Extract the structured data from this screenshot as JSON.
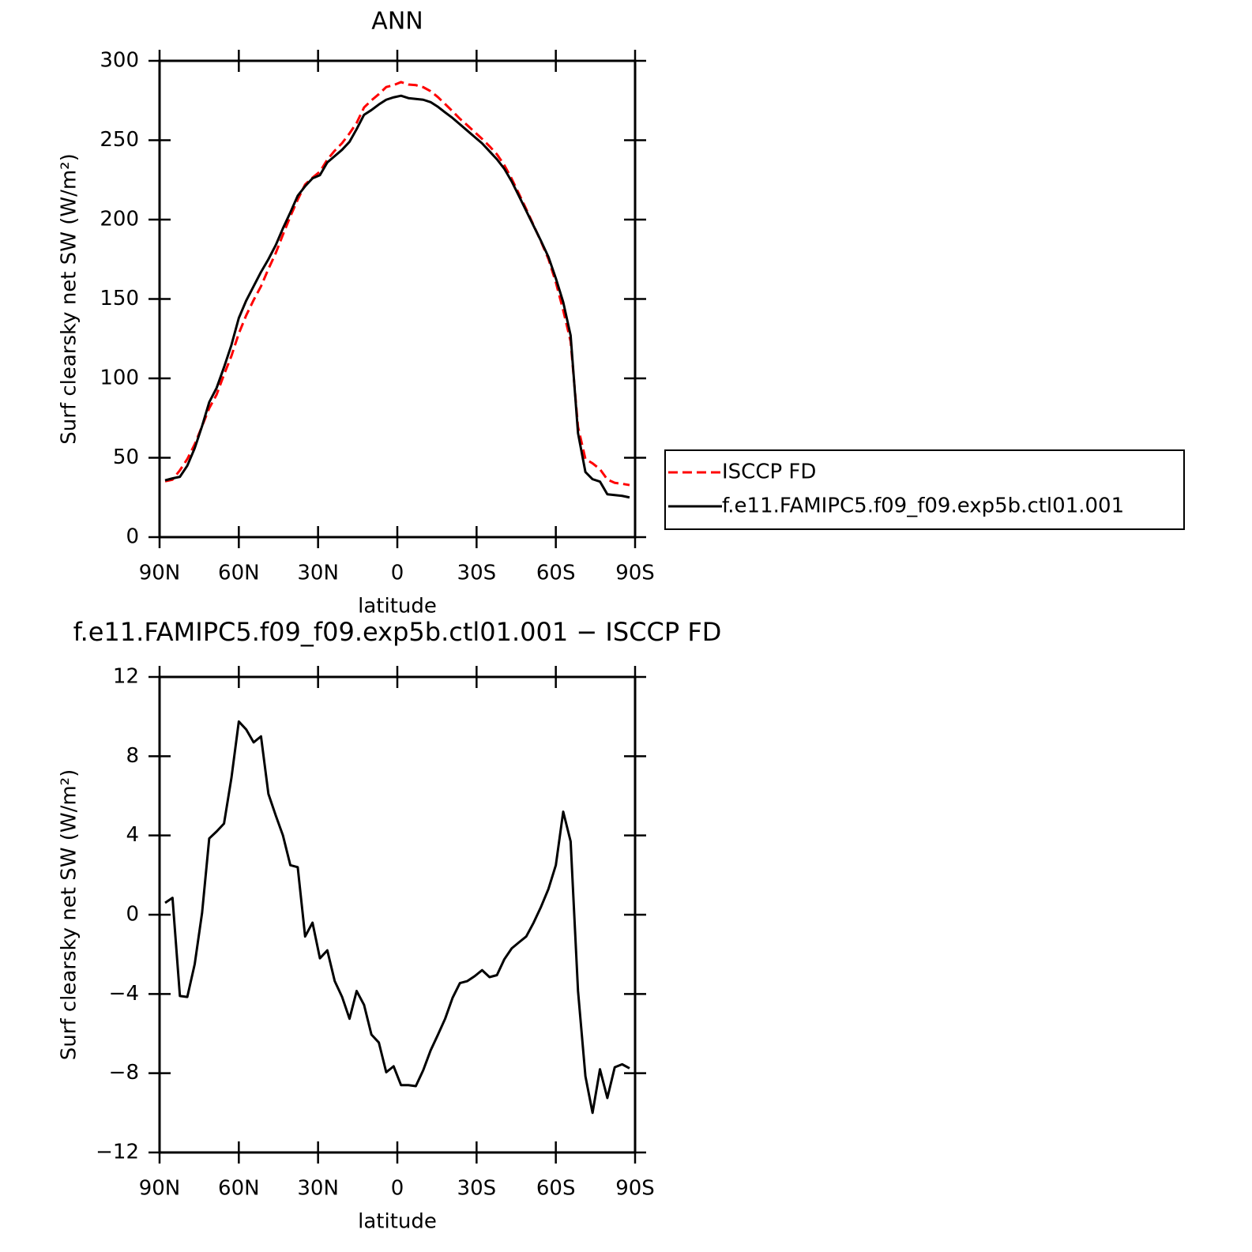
{
  "chart_data": [
    {
      "type": "line",
      "title": "ANN",
      "xlabel": "latitude",
      "ylabel": "Surf clearsky net SW (W/m²)",
      "x": [
        87.9,
        85.1,
        82.3,
        79.5,
        76.7,
        73.9,
        71.2,
        68.4,
        65.6,
        62.8,
        60,
        57.2,
        54.4,
        51.6,
        48.8,
        46,
        43.3,
        40.5,
        37.7,
        34.9,
        32.1,
        29.3,
        26.5,
        23.7,
        20.9,
        18.1,
        15.4,
        12.6,
        9.8,
        7,
        4.2,
        1.4,
        -1.4,
        -4.2,
        -7,
        -9.8,
        -12.6,
        -15.4,
        -18.1,
        -20.9,
        -23.7,
        -26.5,
        -29.3,
        -32.1,
        -34.9,
        -37.7,
        -40.5,
        -43.3,
        -46,
        -48.8,
        -51.6,
        -54.4,
        -57.2,
        -60,
        -62.8,
        -65.6,
        -68.4,
        -71.2,
        -73.9,
        -76.7,
        -79.5,
        -82.3,
        -85.1,
        -87.9
      ],
      "xlim": [
        90,
        -90
      ],
      "xticks": [
        {
          "value": 90,
          "label": "90N"
        },
        {
          "value": 60,
          "label": "60N"
        },
        {
          "value": 30,
          "label": "30N"
        },
        0,
        {
          "value": -30,
          "label": "30S"
        },
        {
          "value": -60,
          "label": "60S"
        },
        {
          "value": -90,
          "label": "90S"
        }
      ],
      "ylim": [
        0,
        300
      ],
      "yticks": [
        0,
        50,
        100,
        150,
        200,
        250,
        300
      ],
      "legend": "right",
      "series": [
        {
          "name": "ISCCP FD",
          "color": "#ff0000",
          "dashed": true,
          "values": [
            35.2,
            36.2,
            42.1,
            49.2,
            58.5,
            69.9,
            81.2,
            89.8,
            102.4,
            114.1,
            128.3,
            139.7,
            149.3,
            158,
            168.9,
            179,
            190.5,
            202,
            212.6,
            222.1,
            226.4,
            230.2,
            237.8,
            243.4,
            248.2,
            254.3,
            260.9,
            270.6,
            275.1,
            279,
            283.5,
            284.7,
            286.6,
            285.1,
            284.7,
            283.4,
            280.9,
            277.1,
            272.8,
            268.2,
            263.5,
            259.4,
            255.1,
            250.8,
            246.2,
            241.1,
            234.3,
            225.7,
            216.4,
            206.6,
            196.4,
            186.1,
            175.2,
            160.5,
            142.8,
            123.3,
            69.4,
            49.2,
            46.5,
            42.8,
            36.3,
            34.2,
            33.6,
            32.8
          ]
        },
        {
          "name": "f.e11.FAMIPC5.f09_f09.exp5b.ctl01.001",
          "color": "#000000",
          "dashed": false,
          "values": [
            35.8,
            37,
            38,
            45,
            56,
            70,
            85,
            94,
            107,
            121,
            138,
            149,
            158,
            167,
            175,
            184,
            194.5,
            204.5,
            215,
            221,
            226,
            228,
            236,
            240,
            244,
            249,
            257,
            266,
            269,
            272.5,
            275.5,
            277,
            278,
            276.5,
            276,
            275.5,
            274,
            271,
            267.5,
            264,
            260,
            256,
            252,
            248,
            243,
            238,
            232,
            224,
            215,
            205.5,
            196,
            186.5,
            176.5,
            163,
            148,
            127,
            65.5,
            41,
            36.5,
            35,
            27,
            26.5,
            26,
            25
          ]
        }
      ]
    },
    {
      "type": "line",
      "title": "f.e11.FAMIPC5.f09_f09.exp5b.ctl01.001 − ISCCP FD",
      "xlabel": "latitude",
      "ylabel": "Surf clearsky net SW (W/m²)",
      "x": [
        87.9,
        85.1,
        82.3,
        79.5,
        76.7,
        73.9,
        71.2,
        68.4,
        65.6,
        62.8,
        60,
        57.2,
        54.4,
        51.6,
        48.8,
        46,
        43.3,
        40.5,
        37.7,
        34.9,
        32.1,
        29.3,
        26.5,
        23.7,
        20.9,
        18.1,
        15.4,
        12.6,
        9.8,
        7,
        4.2,
        1.4,
        -1.4,
        -4.2,
        -7,
        -9.8,
        -12.6,
        -15.4,
        -18.1,
        -20.9,
        -23.7,
        -26.5,
        -29.3,
        -32.1,
        -34.9,
        -37.7,
        -40.5,
        -43.3,
        -46,
        -48.8,
        -51.6,
        -54.4,
        -57.2,
        -60,
        -62.8,
        -65.6,
        -68.4,
        -71.2,
        -73.9,
        -76.7,
        -79.5,
        -82.3,
        -85.1,
        -87.9
      ],
      "xlim": [
        90,
        -90
      ],
      "xticks": [
        {
          "value": 90,
          "label": "90N"
        },
        {
          "value": 60,
          "label": "60N"
        },
        {
          "value": 30,
          "label": "30N"
        },
        0,
        {
          "value": -30,
          "label": "30S"
        },
        {
          "value": -60,
          "label": "60S"
        },
        {
          "value": -90,
          "label": "90S"
        }
      ],
      "ylim": [
        -12,
        12
      ],
      "yticks": [
        {
          "value": -12,
          "label": "−12"
        },
        {
          "value": -8,
          "label": "−8"
        },
        {
          "value": -4,
          "label": "−4"
        },
        0,
        4,
        8,
        12
      ],
      "series": [
        {
          "color": "#000000",
          "dashed": false,
          "values": [
            0.6,
            0.85,
            -4.1,
            -4.15,
            -2.5,
            0.1,
            3.85,
            4.2,
            4.6,
            6.9,
            9.75,
            9.35,
            8.7,
            9,
            6.1,
            5,
            4,
            2.5,
            2.4,
            -1.1,
            -0.4,
            -2.2,
            -1.8,
            -3.35,
            -4.15,
            -5.25,
            -3.85,
            -4.55,
            -6.05,
            -6.45,
            -7.95,
            -7.65,
            -8.6,
            -8.6,
            -8.65,
            -7.85,
            -6.85,
            -6.05,
            -5.25,
            -4.2,
            -3.45,
            -3.35,
            -3.1,
            -2.8,
            -3.15,
            -3.05,
            -2.25,
            -1.7,
            -1.4,
            -1.1,
            -0.4,
            0.4,
            1.3,
            2.5,
            5.2,
            3.7,
            -3.85,
            -8.15,
            -10,
            -7.8,
            -9.25,
            -7.7,
            -7.55,
            -7.75
          ]
        }
      ]
    }
  ]
}
